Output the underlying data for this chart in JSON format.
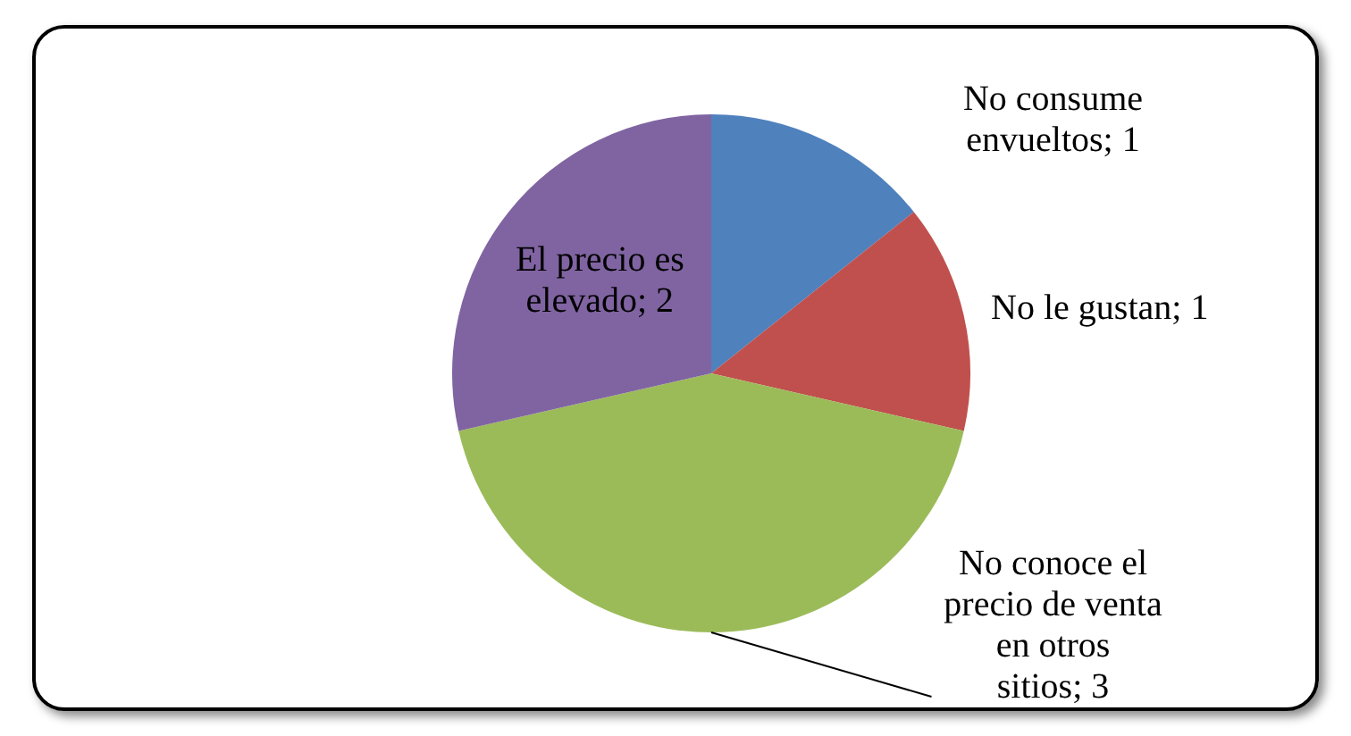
{
  "chart_data": {
    "type": "pie",
    "categories": [
      "No consume envueltos",
      "No le gustan",
      "No conoce el precio de venta en otros sitios",
      "El precio es elevado"
    ],
    "values": [
      1,
      1,
      3,
      2
    ],
    "colors": [
      "#4f81bd",
      "#c0504d",
      "#9bbb59",
      "#8064a2"
    ],
    "value_labels": [
      "; 1",
      "; 1",
      "; 3",
      "; 2"
    ],
    "legend": false
  }
}
